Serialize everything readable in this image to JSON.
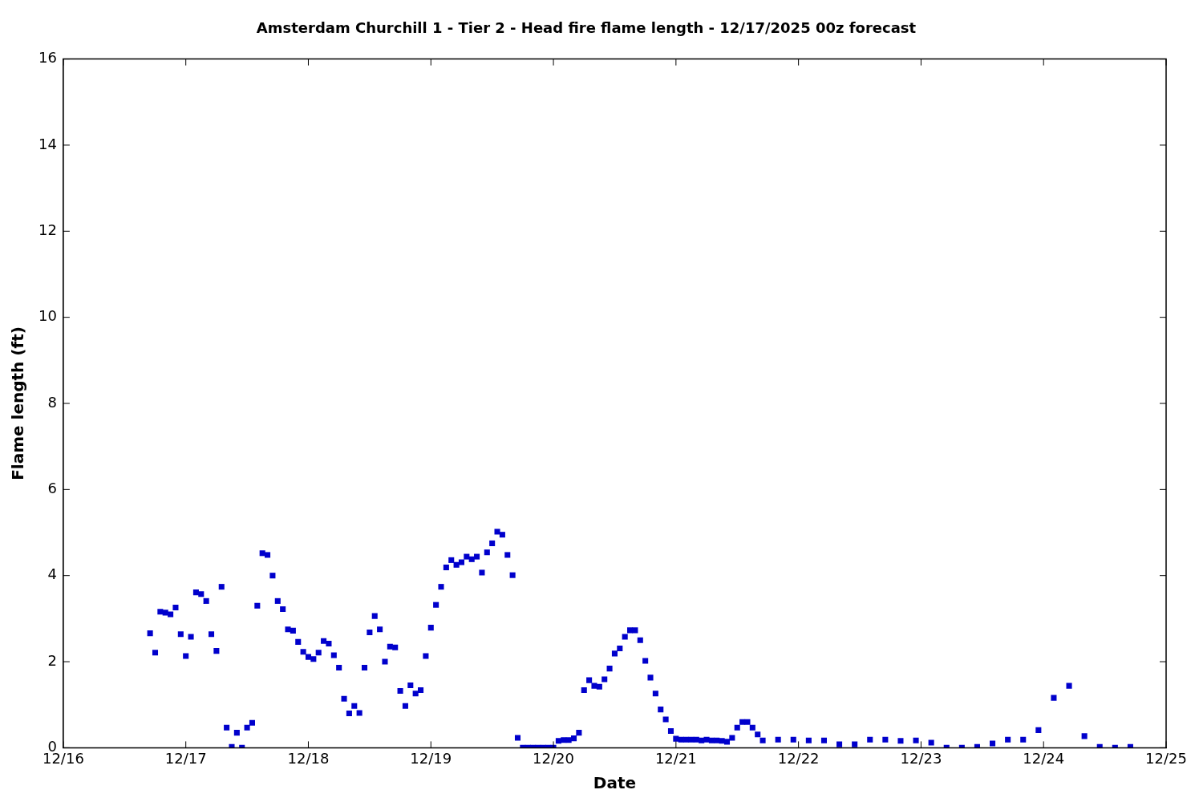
{
  "chart_data": {
    "type": "scatter",
    "title": "Amsterdam Churchill 1 - Tier 2 - Head fire flame length - 12/17/2025 00z forecast",
    "xlabel": "Date",
    "ylabel": "Flame length (ft)",
    "xlim": [
      "--12-16",
      "--12-25"
    ],
    "xticks": [
      {
        "value": "--12-16",
        "label": "12/16"
      },
      {
        "value": "--12-17",
        "label": "12/17"
      },
      {
        "value": "--12-18",
        "label": "12/18"
      },
      {
        "value": "--12-19",
        "label": "12/19"
      },
      {
        "value": "--12-20",
        "label": "12/20"
      },
      {
        "value": "--12-21",
        "label": "12/21"
      },
      {
        "value": "--12-22",
        "label": "12/22"
      },
      {
        "value": "--12-23",
        "label": "12/23"
      },
      {
        "value": "--12-24",
        "label": "12/24"
      },
      {
        "value": "--12-25",
        "label": "12/25"
      }
    ],
    "ylim": [
      0,
      16
    ],
    "yticks": [
      0,
      2,
      4,
      6,
      8,
      10,
      12,
      14,
      16
    ],
    "grid": false,
    "legend": false,
    "marker": "square",
    "series": [
      {
        "color": "#0000cc",
        "x": [
          "--12-16T17:00",
          "--12-16T18:00",
          "--12-16T19:00",
          "--12-16T20:00",
          "--12-16T21:00",
          "--12-16T22:00",
          "--12-16T23:00",
          "--12-17T00:00",
          "--12-17T01:00",
          "--12-17T02:00",
          "--12-17T03:00",
          "--12-17T04:00",
          "--12-17T05:00",
          "--12-17T06:00",
          "--12-17T07:00",
          "--12-17T08:00",
          "--12-17T09:00",
          "--12-17T10:00",
          "--12-17T11:00",
          "--12-17T12:00",
          "--12-17T13:00",
          "--12-17T14:00",
          "--12-17T15:00",
          "--12-17T16:00",
          "--12-17T17:00",
          "--12-17T18:00",
          "--12-17T19:00",
          "--12-17T20:00",
          "--12-17T21:00",
          "--12-17T22:00",
          "--12-17T23:00",
          "--12-18T00:00",
          "--12-18T01:00",
          "--12-18T02:00",
          "--12-18T03:00",
          "--12-18T04:00",
          "--12-18T05:00",
          "--12-18T06:00",
          "--12-18T07:00",
          "--12-18T08:00",
          "--12-18T09:00",
          "--12-18T10:00",
          "--12-18T11:00",
          "--12-18T12:00",
          "--12-18T13:00",
          "--12-18T14:00",
          "--12-18T15:00",
          "--12-18T16:00",
          "--12-18T17:00",
          "--12-18T18:00",
          "--12-18T19:00",
          "--12-18T20:00",
          "--12-18T21:00",
          "--12-18T22:00",
          "--12-18T23:00",
          "--12-19T00:00",
          "--12-19T01:00",
          "--12-19T02:00",
          "--12-19T03:00",
          "--12-19T04:00",
          "--12-19T05:00",
          "--12-19T06:00",
          "--12-19T07:00",
          "--12-19T08:00",
          "--12-19T09:00",
          "--12-19T10:00",
          "--12-19T11:00",
          "--12-19T12:00",
          "--12-19T13:00",
          "--12-19T14:00",
          "--12-19T15:00",
          "--12-19T16:00",
          "--12-19T17:00",
          "--12-19T18:00",
          "--12-19T19:00",
          "--12-19T20:00",
          "--12-19T21:00",
          "--12-19T22:00",
          "--12-19T23:00",
          "--12-20T00:00",
          "--12-20T01:00",
          "--12-20T02:00",
          "--12-20T03:00",
          "--12-20T04:00",
          "--12-20T05:00",
          "--12-20T06:00",
          "--12-20T07:00",
          "--12-20T08:00",
          "--12-20T09:00",
          "--12-20T10:00",
          "--12-20T11:00",
          "--12-20T12:00",
          "--12-20T13:00",
          "--12-20T14:00",
          "--12-20T15:00",
          "--12-20T16:00",
          "--12-20T17:00",
          "--12-20T18:00",
          "--12-20T19:00",
          "--12-20T20:00",
          "--12-20T21:00",
          "--12-20T22:00",
          "--12-20T23:00",
          "--12-21T00:00",
          "--12-21T01:00",
          "--12-21T02:00",
          "--12-21T03:00",
          "--12-21T04:00",
          "--12-21T05:00",
          "--12-21T06:00",
          "--12-21T07:00",
          "--12-21T08:00",
          "--12-21T09:00",
          "--12-21T10:00",
          "--12-21T11:00",
          "--12-21T12:00",
          "--12-21T13:00",
          "--12-21T14:00",
          "--12-21T15:00",
          "--12-21T16:00",
          "--12-21T17:00",
          "--12-21T20:00",
          "--12-21T23:00",
          "--12-22T02:00",
          "--12-22T05:00",
          "--12-22T08:00",
          "--12-22T11:00",
          "--12-22T14:00",
          "--12-22T17:00",
          "--12-22T20:00",
          "--12-22T23:00",
          "--12-23T02:00",
          "--12-23T05:00",
          "--12-23T08:00",
          "--12-23T11:00",
          "--12-23T14:00",
          "--12-23T17:00",
          "--12-23T20:00",
          "--12-23T23:00",
          "--12-24T02:00",
          "--12-24T05:00",
          "--12-24T08:00",
          "--12-24T11:00",
          "--12-24T14:00",
          "--12-24T17:00"
        ],
        "values": [
          2.66,
          2.21,
          3.16,
          3.14,
          3.1,
          3.26,
          2.64,
          2.13,
          2.58,
          3.61,
          3.57,
          3.41,
          2.64,
          2.25,
          3.74,
          0.47,
          0.02,
          0.35,
          0.0,
          0.47,
          0.58,
          3.3,
          4.52,
          4.48,
          4.0,
          3.41,
          3.22,
          2.75,
          2.72,
          2.46,
          2.23,
          2.11,
          2.06,
          2.21,
          2.48,
          2.42,
          2.15,
          1.86,
          1.14,
          0.8,
          0.97,
          0.81,
          1.86,
          2.68,
          3.06,
          2.75,
          2.0,
          2.35,
          2.33,
          1.32,
          0.97,
          1.45,
          1.26,
          1.34,
          2.13,
          2.79,
          3.32,
          3.74,
          4.19,
          4.36,
          4.25,
          4.31,
          4.44,
          4.38,
          4.44,
          4.07,
          4.54,
          4.75,
          5.02,
          4.95,
          4.48,
          4.01,
          0.23,
          0.0,
          0.0,
          0.0,
          0.0,
          0.0,
          0.0,
          0.0,
          0.16,
          0.18,
          0.18,
          0.22,
          0.35,
          1.34,
          1.57,
          1.44,
          1.42,
          1.59,
          1.84,
          2.19,
          2.31,
          2.58,
          2.73,
          2.73,
          2.5,
          2.02,
          1.63,
          1.26,
          0.89,
          0.66,
          0.39,
          0.21,
          0.19,
          0.19,
          0.19,
          0.19,
          0.17,
          0.19,
          0.17,
          0.17,
          0.16,
          0.14,
          0.23,
          0.47,
          0.6,
          0.6,
          0.47,
          0.31,
          0.17,
          0.19,
          0.19,
          0.17,
          0.17,
          0.08,
          0.08,
          0.19,
          0.19,
          0.16,
          0.17,
          0.12,
          0.0,
          0.0,
          0.02,
          0.1,
          0.19,
          0.19,
          0.41,
          1.16,
          1.44,
          0.27,
          0.02,
          0.0,
          0.02
        ]
      }
    ]
  }
}
